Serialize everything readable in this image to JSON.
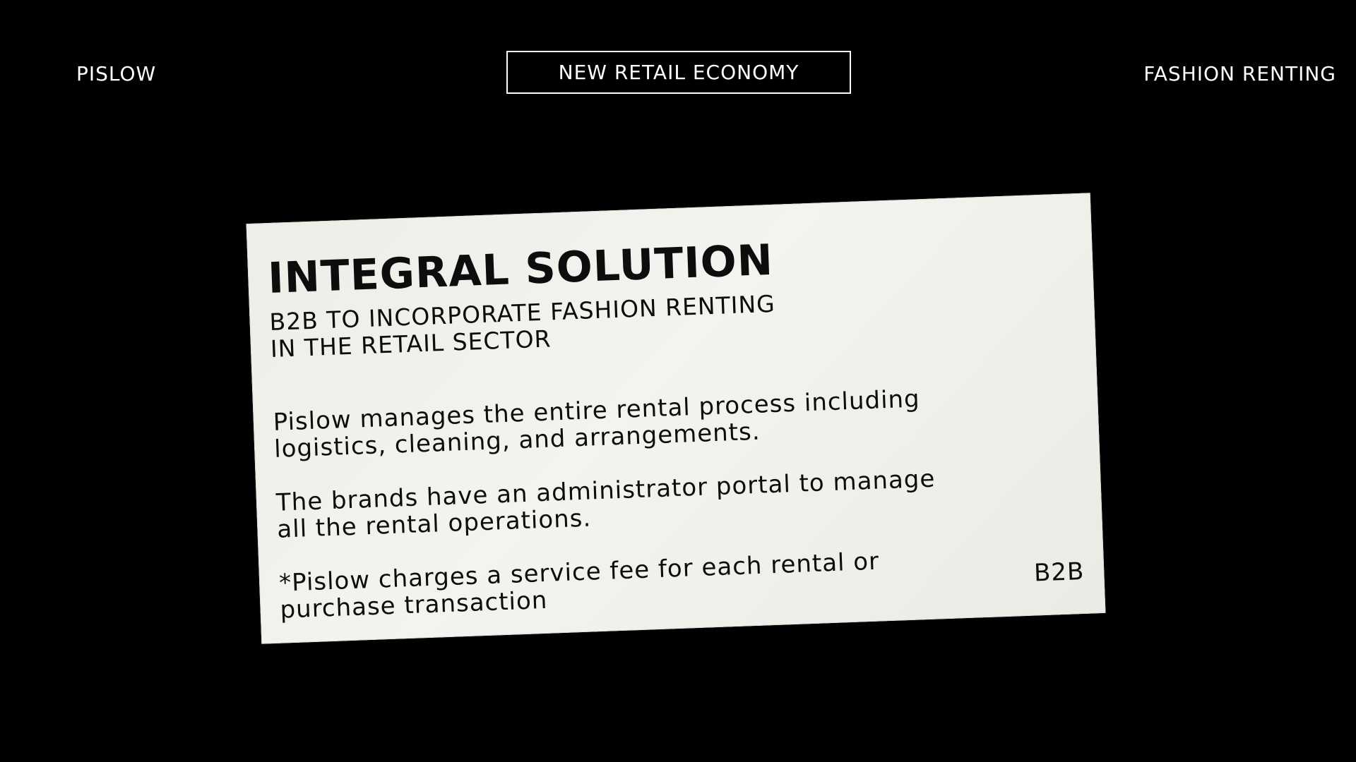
{
  "header": {
    "brand": "PISLOW",
    "center_badge": "NEW RETAIL ECONOMY",
    "right_label": "FASHION RENTING"
  },
  "card": {
    "title": "INTEGRAL SOLUTION",
    "subtitle": "B2B TO INCORPORATE FASHION RENTING IN THE RETAIL SECTOR",
    "paragraphs": [
      "Pislow manages the entire rental process including logistics, cleaning, and arrangements.",
      "The brands have an administrator portal to manage all the rental operations.",
      "*Pislow charges a service fee for each rental or purchase transaction"
    ],
    "tag": "B2B"
  },
  "colors": {
    "background": "#000000",
    "text_light": "#ffffff",
    "card_paper": "#f1f0eb",
    "text_dark": "#0d0d0d"
  }
}
